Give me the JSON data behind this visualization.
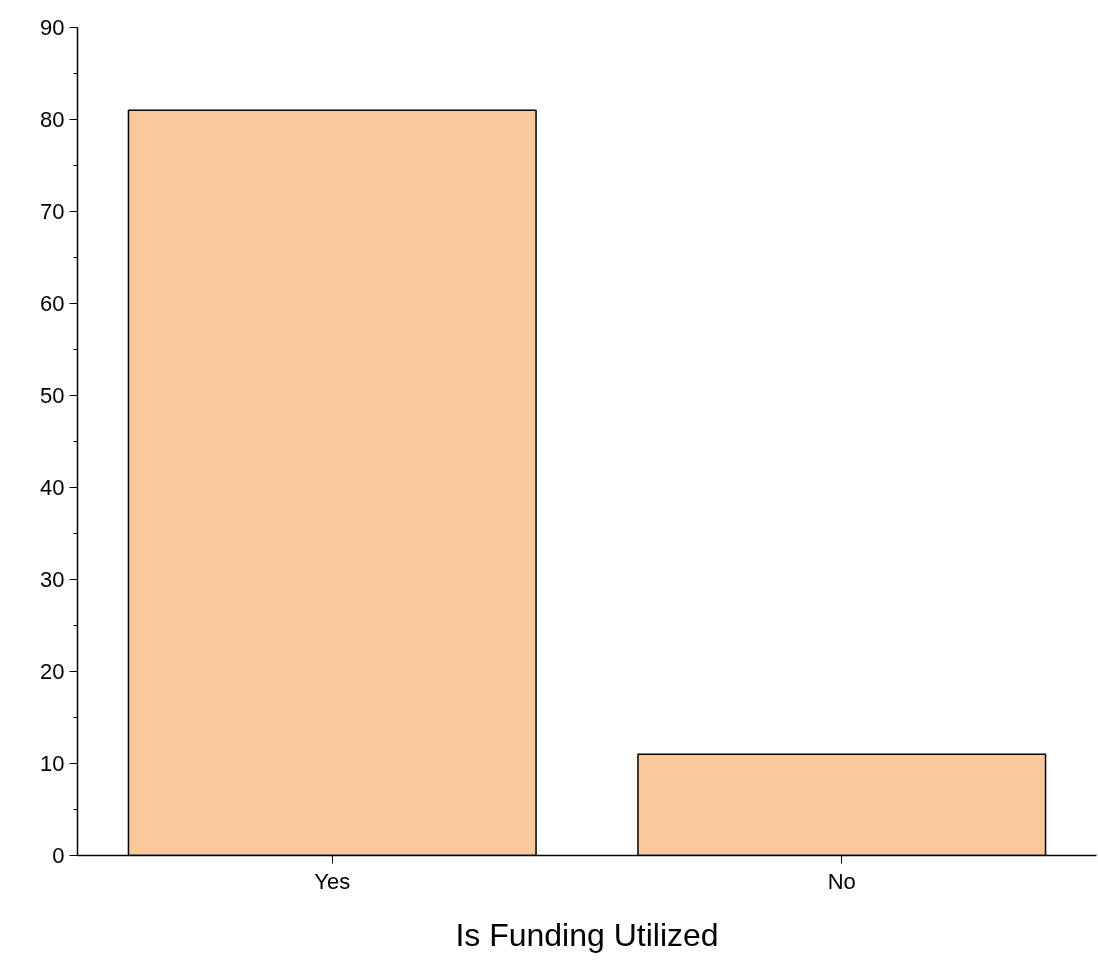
{
  "chart_data": {
    "type": "bar",
    "xlabel": "Is Funding Utilized",
    "categories": [
      "Yes",
      "No"
    ],
    "values": [
      81,
      11
    ],
    "color": "#f9c89b",
    "ylim": [
      0,
      90
    ],
    "yticks": [
      0,
      10,
      20,
      30,
      40,
      50,
      60,
      70,
      80,
      90
    ],
    "grid": false
  }
}
